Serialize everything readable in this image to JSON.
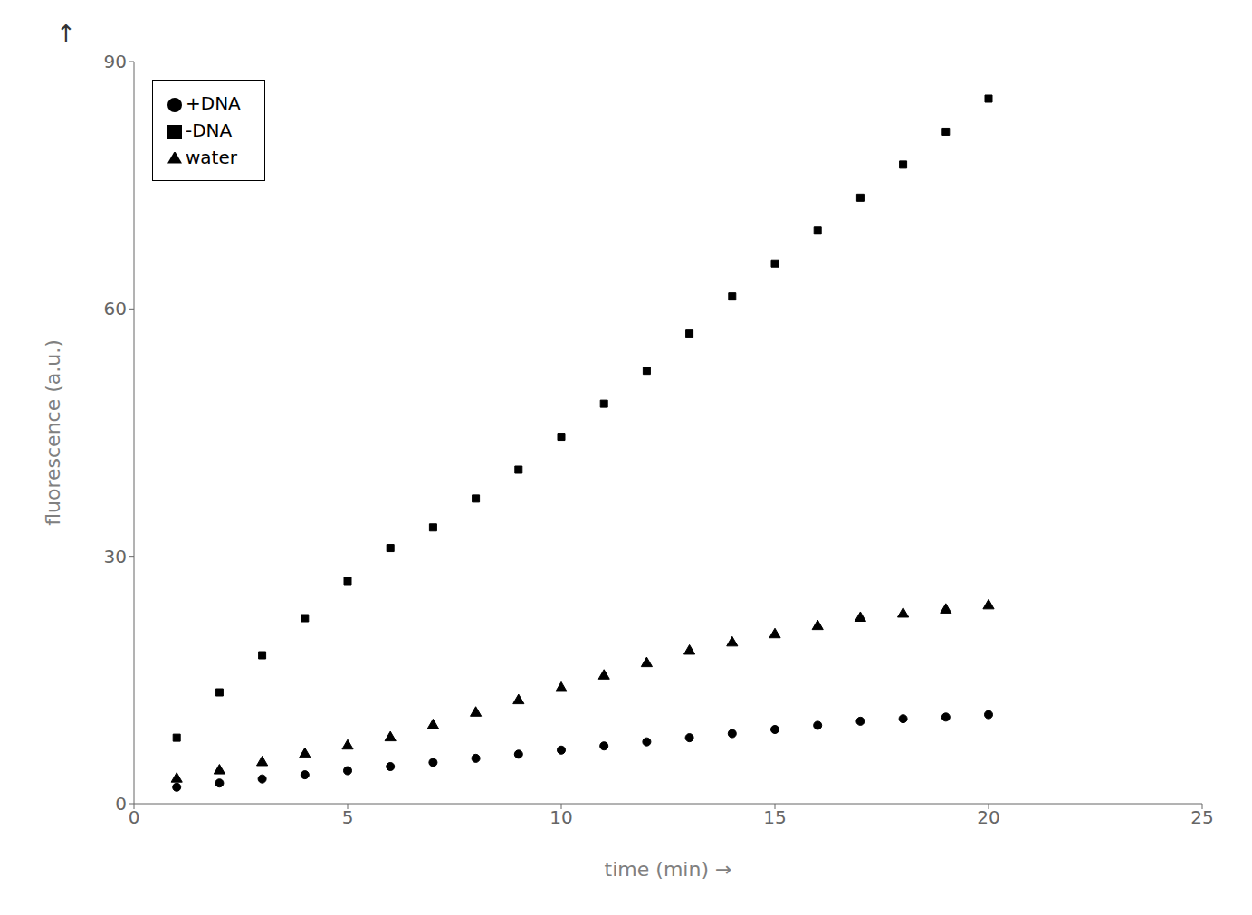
{
  "chart_data": {
    "type": "scatter",
    "xlabel": "time (min) →",
    "ylabel": "fluorescence (a.u.)",
    "annotations": [
      "↑"
    ],
    "xlim": [
      0,
      25
    ],
    "ylim": [
      0,
      90
    ],
    "xticks": [
      0,
      5,
      10,
      15,
      20,
      25
    ],
    "yticks": [
      0,
      30,
      60,
      90
    ],
    "grid": false,
    "legend": "upper left",
    "series": [
      {
        "name": "water",
        "marker": "triangle",
        "color": "#000000",
        "x": [
          1,
          2,
          3,
          4,
          5,
          6,
          7,
          8,
          9,
          10,
          11,
          12,
          13,
          14,
          15,
          16,
          17,
          18,
          19,
          20
        ],
        "values": [
          3.0,
          4.0,
          5.0,
          6.0,
          7.0,
          8.0,
          9.5,
          11.0,
          12.5,
          14.0,
          15.5,
          17.0,
          18.5,
          19.5,
          20.5,
          21.5,
          22.5,
          23.0,
          23.5,
          24.0
        ]
      },
      {
        "name": "-DNA",
        "marker": "square",
        "color": "#000000",
        "x": [
          1,
          2,
          3,
          4,
          5,
          6,
          7,
          8,
          9,
          10,
          11,
          12,
          13,
          14,
          15,
          16,
          17,
          18,
          19,
          20
        ],
        "values": [
          8.0,
          13.5,
          18.0,
          22.5,
          27.0,
          31.0,
          33.5,
          37.0,
          40.5,
          44.5,
          48.5,
          52.5,
          57.0,
          61.5,
          65.5,
          69.5,
          73.5,
          77.5,
          81.5,
          85.5
        ]
      },
      {
        "name": "+DNA",
        "marker": "circle",
        "color": "#000000",
        "x": [
          1,
          2,
          3,
          4,
          5,
          6,
          7,
          8,
          9,
          10,
          11,
          12,
          13,
          14,
          15,
          16,
          17,
          18,
          19,
          20
        ],
        "values": [
          2.0,
          2.5,
          3.0,
          3.5,
          4.0,
          4.5,
          5.0,
          5.5,
          6.0,
          6.5,
          7.0,
          7.5,
          8.0,
          8.5,
          9.0,
          9.5,
          10.0,
          10.3,
          10.5,
          10.8
        ]
      }
    ]
  }
}
